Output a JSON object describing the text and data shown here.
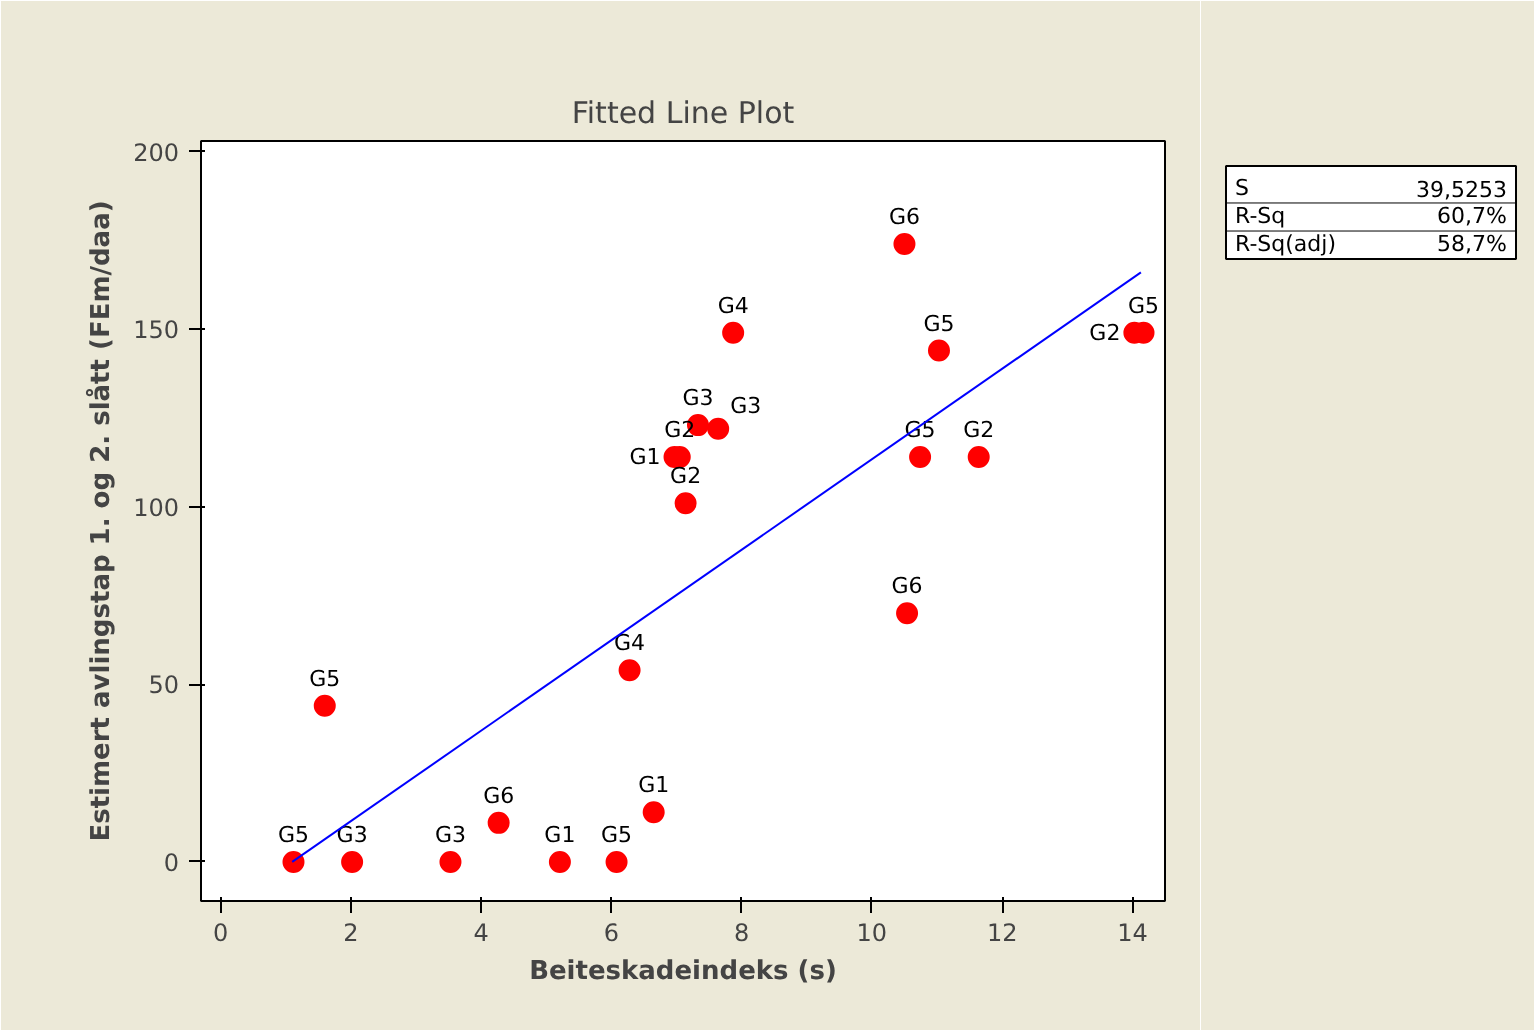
{
  "chart_data": {
    "type": "scatter",
    "title": "Fitted Line Plot",
    "xlabel": "Beiteskadeindeks (s)",
    "ylabel": "Estimert avlingstap 1. og 2. slått (FEm/daa)",
    "xlim": [
      -0.3,
      14.5
    ],
    "ylim": [
      -11,
      203
    ],
    "xticks": [
      0,
      2,
      4,
      6,
      8,
      10,
      12,
      14
    ],
    "yticks": [
      0,
      50,
      100,
      150,
      200
    ],
    "grid": false,
    "series": [
      {
        "marker": "circle",
        "color": "#ff0000",
        "x": [
          1.12,
          2.02,
          3.53,
          4.27,
          5.21,
          6.08,
          6.65,
          6.28,
          1.6,
          7.14,
          6.97,
          7.05,
          7.33,
          7.64,
          7.87,
          10.5,
          11.03,
          10.74,
          11.64,
          10.54,
          14.03,
          14.17
        ],
        "values": [
          0,
          0,
          0,
          11,
          0,
          0,
          14,
          54,
          44,
          101,
          114,
          114,
          123,
          122,
          149,
          174,
          144,
          114,
          114,
          70,
          149,
          149
        ],
        "value_labels": [
          "G5",
          "G3",
          "G3",
          "G6",
          "G1",
          "G5",
          "G1",
          "G4",
          "G5",
          "G2",
          "G1",
          "G2",
          "G3",
          "G3",
          "G4",
          "G6",
          "G5",
          "G5",
          "G2",
          "G6",
          "G2",
          "G5"
        ]
      },
      {
        "type": "line",
        "color": "#0000ff",
        "x": [
          1.1,
          14.13
        ],
        "values": [
          0,
          166
        ],
        "line_style": "solid"
      }
    ],
    "annotations": [
      "S 39,5253",
      "R-Sq 60,7%",
      "R-Sq(adj) 58,7%"
    ]
  }
}
